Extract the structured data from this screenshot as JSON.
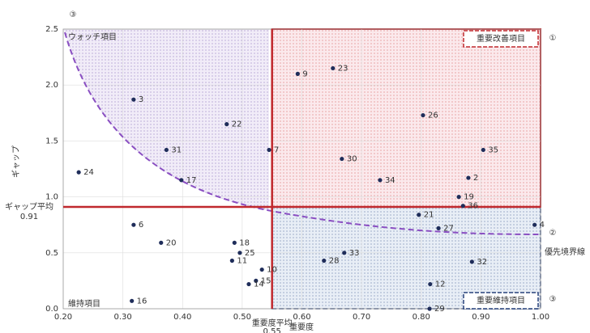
{
  "chart_data": {
    "type": "scatter",
    "x_label": "重要度",
    "y_label": "ギャップ",
    "x": [
      0.318,
      0.593,
      0.652,
      0.474,
      0.803,
      0.373,
      0.545,
      0.667,
      0.904,
      0.226,
      0.398,
      0.731,
      0.879,
      0.863,
      0.87,
      0.318,
      0.796,
      0.829,
      0.99,
      0.364,
      0.487,
      0.496,
      0.671,
      0.637,
      0.483,
      0.885,
      0.533,
      0.523,
      0.511,
      0.815,
      0.315,
      0.814
    ],
    "series": [
      {
        "color": "#1f2d5a",
        "labels": [
          "3",
          "9",
          "23",
          "22",
          "26",
          "31",
          "7",
          "30",
          "35",
          "24",
          "17",
          "34",
          "2",
          "19",
          "36",
          "6",
          "21",
          "27",
          "4",
          "20",
          "18",
          "25",
          "33",
          "28",
          "11",
          "32",
          "10",
          "15",
          "14",
          "12",
          "16",
          "29"
        ],
        "values": [
          1.87,
          2.1,
          2.15,
          1.65,
          1.73,
          1.42,
          1.42,
          1.34,
          1.42,
          1.22,
          1.15,
          1.15,
          1.17,
          1.0,
          0.92,
          0.75,
          0.84,
          0.72,
          0.75,
          0.59,
          0.59,
          0.5,
          0.5,
          0.43,
          0.43,
          0.42,
          0.35,
          0.25,
          0.22,
          0.22,
          0.07,
          0.0
        ]
      }
    ],
    "xlim": [
      0.2,
      1.0
    ],
    "xticks": [
      {
        "value": 0.2,
        "label": "0.20"
      },
      {
        "value": 0.3,
        "label": "0.30"
      },
      {
        "value": 0.4,
        "label": "0.40"
      },
      {
        "value": 0.5,
        "label": "0.50"
      },
      {
        "value": 0.6,
        "label": "0.60"
      },
      {
        "value": 0.7,
        "label": "0.70"
      },
      {
        "value": 0.8,
        "label": "0.80"
      },
      {
        "value": 0.9,
        "label": "0.90"
      },
      {
        "value": 1.0,
        "label": "1.00"
      }
    ],
    "ylim": [
      0,
      2.5
    ],
    "yticks": [
      {
        "value": 0,
        "label": "0.0"
      },
      0.5,
      {
        "value": 1,
        "label": "1.0"
      },
      1.5,
      {
        "value": 2,
        "label": "2.0"
      },
      2.5
    ],
    "x_mean": 0.55,
    "x_mean_label": "重要度平均",
    "y_mean": 0.91,
    "y_mean_label": "ギャップ平均",
    "quadrants": {
      "improve": "重要改善項目",
      "improve_no": "①",
      "watch": "ウォッチ項目",
      "watch_no": "③",
      "keep": "維持項目",
      "keep_important": "重要維持項目",
      "keep_important_no": "③",
      "boundary_no": "②",
      "boundary": "優先境界線"
    }
  }
}
